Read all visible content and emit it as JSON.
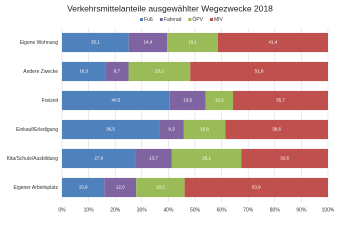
{
  "chart_data": {
    "type": "stacked-barh",
    "title": "Verkehrsmittelanteile ausgewählter Wegezwecke 2018",
    "categories": [
      "Eigene Wohnung",
      "Andere Zwecke",
      "Freizeit",
      "Einkauf/Erledigung",
      "Kita/Schule/Ausbildung",
      "Eigener Arbeitsplatz"
    ],
    "series": [
      {
        "name": "Fuß",
        "color": "#4f81bd",
        "values": [
          25.1,
          16.3,
          40.5,
          36.5,
          27.6,
          15.9
        ],
        "value_labels": [
          "25,1",
          "16,3",
          "40,5",
          "36,5",
          "27,6",
          "15,9"
        ]
      },
      {
        "name": "Fahrrad",
        "color": "#8064a2",
        "values": [
          14.4,
          8.7,
          13.5,
          9.3,
          13.7,
          12.0
        ],
        "value_labels": [
          "14,4",
          "8,7",
          "13,5",
          "9,3",
          "13,7",
          "12,0"
        ]
      },
      {
        "name": "ÖPV",
        "color": "#9bbb59",
        "values": [
          19.1,
          23.2,
          10.3,
          15.6,
          26.1,
          18.2
        ],
        "value_labels": [
          "19,1",
          "23,2",
          "10,3",
          "15,6",
          "26,1",
          "18,2"
        ]
      },
      {
        "name": "MIV",
        "color": "#c0504d",
        "values": [
          41.4,
          51.8,
          35.7,
          38.6,
          32.6,
          53.9
        ],
        "value_labels": [
          "41,4",
          "51,8",
          "35,7",
          "38,6",
          "32,6",
          "53,9"
        ]
      }
    ],
    "xlim": [
      0,
      100
    ],
    "xticks": [
      {
        "value": 0,
        "label": "0%"
      },
      {
        "value": 10,
        "label": "10%"
      },
      {
        "value": 20,
        "label": "20%"
      },
      {
        "value": 30,
        "label": "30%"
      },
      {
        "value": 40,
        "label": "40%"
      },
      {
        "value": 50,
        "label": "50%"
      },
      {
        "value": 60,
        "label": "60%"
      },
      {
        "value": 70,
        "label": "70%"
      },
      {
        "value": 80,
        "label": "80%"
      },
      {
        "value": 90,
        "label": "90%"
      },
      {
        "value": 100,
        "label": "100%"
      }
    ],
    "grid": true
  }
}
